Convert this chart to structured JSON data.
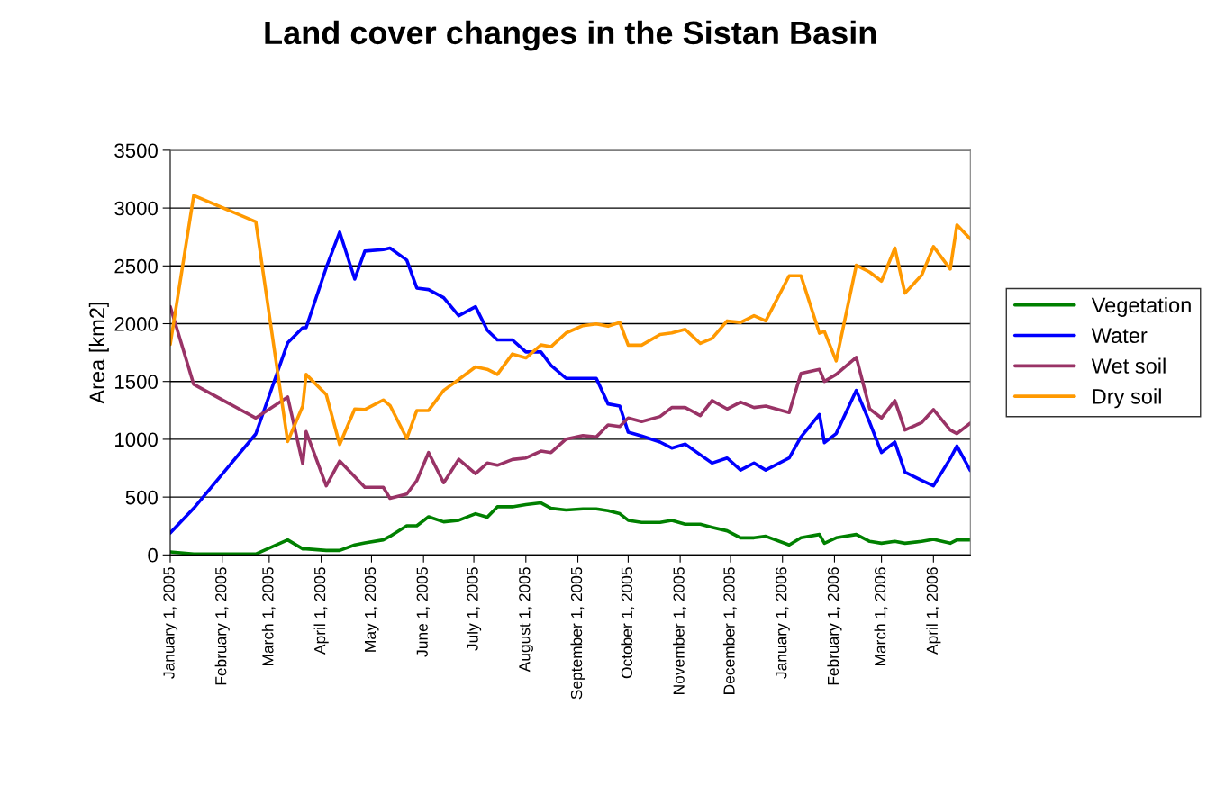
{
  "chart_data": {
    "type": "line",
    "title": "Land cover changes in the Sistan Basin",
    "ylabel": "Area [km2]",
    "x": [
      "2005-01-01",
      "2005-01-15",
      "2005-02-21",
      "2005-03-12",
      "2005-03-21",
      "2005-03-23",
      "2005-04-04",
      "2005-04-12",
      "2005-04-21",
      "2005-04-27",
      "2005-05-08",
      "2005-05-12",
      "2005-05-22",
      "2005-05-28",
      "2005-06-04",
      "2005-06-13",
      "2005-06-22",
      "2005-07-02",
      "2005-07-09",
      "2005-07-15",
      "2005-07-24",
      "2005-08-01",
      "2005-08-10",
      "2005-08-16",
      "2005-08-25",
      "2005-09-04",
      "2005-09-12",
      "2005-09-19",
      "2005-09-26",
      "2005-10-01",
      "2005-10-09",
      "2005-10-20",
      "2005-10-27",
      "2005-11-04",
      "2005-11-13",
      "2005-11-20",
      "2005-11-29",
      "2005-12-07",
      "2005-12-15",
      "2005-12-22",
      "2006-01-05",
      "2006-01-12",
      "2006-01-23",
      "2006-01-26",
      "2006-02-02",
      "2006-02-14",
      "2006-02-22",
      "2006-03-01",
      "2006-03-09",
      "2006-03-15",
      "2006-03-25",
      "2006-04-01",
      "2006-04-11",
      "2006-04-15",
      "2006-04-23"
    ],
    "series": [
      {
        "name": "Vegetation",
        "color": "#008000",
        "values": [
          26,
          8,
          8,
          130,
          52,
          52,
          39,
          39,
          86,
          104,
          130,
          161,
          252,
          252,
          330,
          286,
          299,
          356,
          325,
          416,
          416,
          435,
          450,
          403,
          388,
          398,
          398,
          382,
          356,
          299,
          281,
          281,
          299,
          265,
          265,
          239,
          208,
          148,
          148,
          161,
          86,
          148,
          177,
          101,
          148,
          177,
          117,
          101,
          117,
          101,
          117,
          135,
          101,
          130,
          130
        ]
      },
      {
        "name": "Water",
        "color": "#0000ff",
        "values": [
          190,
          403,
          1046,
          1834,
          1965,
          1965,
          2485,
          2792,
          2386,
          2628,
          2641,
          2654,
          2550,
          2308,
          2295,
          2225,
          2069,
          2147,
          1944,
          1860,
          1860,
          1756,
          1756,
          1639,
          1527,
          1527,
          1527,
          1306,
          1288,
          1061,
          1028,
          976,
          924,
          958,
          866,
          794,
          838,
          734,
          794,
          734,
          838,
          1020,
          1215,
          971,
          1049,
          1423,
          1145,
          885,
          976,
          716,
          645,
          598,
          833,
          942,
          729
        ]
      },
      {
        "name": "Wet soil",
        "color": "#993366",
        "values": [
          2147,
          1475,
          1184,
          1366,
          788,
          1067,
          598,
          812,
          677,
          585,
          585,
          489,
          526,
          643,
          885,
          624,
          827,
          703,
          794,
          775,
          825,
          838,
          898,
          885,
          1002,
          1033,
          1020,
          1124,
          1111,
          1184,
          1153,
          1197,
          1275,
          1275,
          1205,
          1335,
          1262,
          1322,
          1275,
          1288,
          1231,
          1569,
          1605,
          1501,
          1561,
          1709,
          1262,
          1184,
          1335,
          1080,
          1145,
          1257,
          1080,
          1049,
          1140
        ]
      },
      {
        "name": "Dry soil",
        "color": "#ff9900",
        "values": [
          1821,
          3109,
          2881,
          981,
          1288,
          1561,
          1387,
          955,
          1262,
          1257,
          1340,
          1293,
          1007,
          1249,
          1249,
          1423,
          1517,
          1626,
          1605,
          1561,
          1738,
          1704,
          1816,
          1801,
          1920,
          1983,
          1998,
          1978,
          2011,
          1814,
          1814,
          1907,
          1920,
          1951,
          1829,
          1873,
          2024,
          2011,
          2069,
          2024,
          2415,
          2415,
          1918,
          1933,
          1678,
          2506,
          2446,
          2368,
          2654,
          2264,
          2420,
          2667,
          2472,
          2854,
          2732
        ]
      }
    ],
    "xlim": [
      "2005-01-01",
      "2006-04-23"
    ],
    "xticks": [
      {
        "value": "2005-01-01",
        "label": "January 1, 2005"
      },
      {
        "value": "2005-02-01",
        "label": "February 1, 2005"
      },
      {
        "value": "2005-03-01",
        "label": "March 1, 2005"
      },
      {
        "value": "2005-04-01",
        "label": "April 1, 2005"
      },
      {
        "value": "2005-05-01",
        "label": "May 1, 2005"
      },
      {
        "value": "2005-06-01",
        "label": "June 1, 2005"
      },
      {
        "value": "2005-07-01",
        "label": "July 1, 2005"
      },
      {
        "value": "2005-08-01",
        "label": "August 1, 2005"
      },
      {
        "value": "2005-09-01",
        "label": "September 1, 2005"
      },
      {
        "value": "2005-10-01",
        "label": "October 1, 2005"
      },
      {
        "value": "2005-11-01",
        "label": "November 1, 2005"
      },
      {
        "value": "2005-12-01",
        "label": "December 1, 2005"
      },
      {
        "value": "2006-01-01",
        "label": "January 1, 2006"
      },
      {
        "value": "2006-02-01",
        "label": "February 1, 2006"
      },
      {
        "value": "2006-03-01",
        "label": "March 1, 2006"
      },
      {
        "value": "2006-04-01",
        "label": "April 1, 2006"
      }
    ],
    "ylim": [
      0,
      3500
    ],
    "yticks": [
      0,
      500,
      1000,
      1500,
      2000,
      2500,
      3000,
      3500
    ],
    "grid": "y",
    "legend": "right",
    "marker": "none",
    "line_style": "solid"
  }
}
